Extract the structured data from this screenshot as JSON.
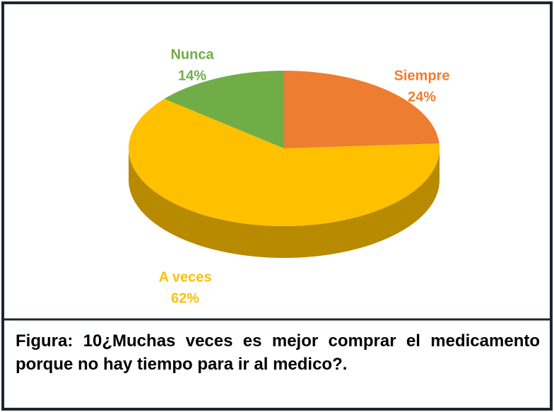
{
  "chart_data": {
    "type": "pie",
    "categories": [
      "Siempre",
      "A veces",
      "Nunca"
    ],
    "values": [
      24,
      62,
      14
    ],
    "value_labels": [
      "24%",
      "62%",
      "14%"
    ],
    "colors": [
      "#ED7D31",
      "#FFC000",
      "#70AD47"
    ],
    "caption": "Figura: 10¿Muchas veces es mejor comprar el medicamento porque no hay tiempo para ir al medico?."
  }
}
